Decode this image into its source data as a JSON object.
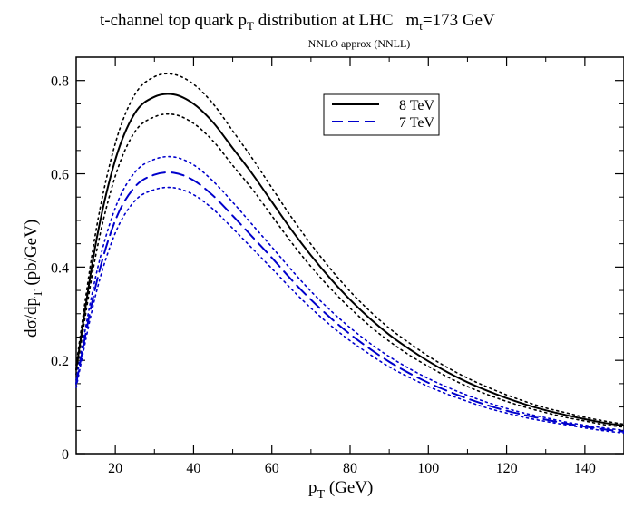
{
  "chart_data": {
    "type": "line",
    "title_main": "t-channel top quark p",
    "title_sub_T": "T",
    "title_rest": " distribution at LHC",
    "title_mass_prefix": "m",
    "title_mass_sub": "t",
    "title_mass_value": "=173 GeV",
    "subtitle": "NNLO approx (NNLL)",
    "xlabel_main": "p",
    "xlabel_sub": "T",
    "xlabel_unit": " (GeV)",
    "ylabel_main": "dσ/dp",
    "ylabel_sub": "T",
    "ylabel_unit": " (pb/GeV)",
    "xlim": [
      10,
      150
    ],
    "ylim": [
      0,
      0.85
    ],
    "xticks": [
      20,
      40,
      60,
      80,
      100,
      120,
      140
    ],
    "xtick_labels": [
      "20",
      "40",
      "60",
      "80",
      "100",
      "120",
      "140"
    ],
    "yticks": [
      0,
      0.2,
      0.4,
      0.6,
      0.8
    ],
    "ytick_labels": [
      "0",
      "0.2",
      "0.4",
      "0.6",
      "0.8"
    ],
    "grid": false,
    "legend_position": "top-center",
    "x": [
      10,
      15,
      20,
      25,
      30,
      35,
      40,
      45,
      50,
      55,
      60,
      65,
      70,
      75,
      80,
      85,
      90,
      95,
      100,
      105,
      110,
      115,
      120,
      125,
      130,
      135,
      140,
      145,
      150
    ],
    "series": [
      {
        "name": "8 TeV",
        "color": "#000000",
        "style": "solid",
        "values": [
          0.18,
          0.45,
          0.63,
          0.73,
          0.765,
          0.77,
          0.75,
          0.71,
          0.655,
          0.6,
          0.54,
          0.48,
          0.425,
          0.375,
          0.33,
          0.29,
          0.255,
          0.225,
          0.198,
          0.174,
          0.153,
          0.135,
          0.119,
          0.105,
          0.093,
          0.083,
          0.074,
          0.066,
          0.06
        ]
      },
      {
        "color": "#000000",
        "style": "dotted",
        "values": [
          0.19,
          0.475,
          0.665,
          0.77,
          0.808,
          0.813,
          0.792,
          0.75,
          0.692,
          0.633,
          0.57,
          0.507,
          0.449,
          0.396,
          0.348,
          0.306,
          0.269,
          0.238,
          0.209,
          0.184,
          0.162,
          0.143,
          0.126,
          0.111,
          0.098,
          0.088,
          0.078,
          0.07,
          0.063
        ]
      },
      {
        "color": "#000000",
        "style": "dotted",
        "values": [
          0.17,
          0.425,
          0.595,
          0.69,
          0.722,
          0.727,
          0.708,
          0.67,
          0.618,
          0.567,
          0.51,
          0.453,
          0.401,
          0.354,
          0.312,
          0.274,
          0.241,
          0.212,
          0.187,
          0.164,
          0.144,
          0.127,
          0.112,
          0.099,
          0.088,
          0.078,
          0.07,
          0.062,
          0.057
        ]
      },
      {
        "name": "7 TeV",
        "color": "#0000cc",
        "style": "dashed",
        "values": [
          0.15,
          0.36,
          0.5,
          0.572,
          0.598,
          0.602,
          0.586,
          0.553,
          0.51,
          0.465,
          0.42,
          0.373,
          0.33,
          0.291,
          0.256,
          0.225,
          0.197,
          0.173,
          0.152,
          0.134,
          0.118,
          0.104,
          0.092,
          0.082,
          0.073,
          0.065,
          0.058,
          0.052,
          0.047
        ]
      },
      {
        "color": "#0000cc",
        "style": "dotted",
        "values": [
          0.158,
          0.38,
          0.527,
          0.603,
          0.631,
          0.636,
          0.619,
          0.584,
          0.539,
          0.491,
          0.443,
          0.394,
          0.348,
          0.307,
          0.27,
          0.237,
          0.208,
          0.183,
          0.161,
          0.142,
          0.125,
          0.11,
          0.097,
          0.086,
          0.077,
          0.068,
          0.061,
          0.055,
          0.05
        ]
      },
      {
        "color": "#0000cc",
        "style": "dotted",
        "values": [
          0.142,
          0.341,
          0.473,
          0.542,
          0.566,
          0.57,
          0.555,
          0.524,
          0.483,
          0.44,
          0.397,
          0.353,
          0.312,
          0.275,
          0.242,
          0.213,
          0.186,
          0.164,
          0.144,
          0.127,
          0.112,
          0.098,
          0.087,
          0.077,
          0.069,
          0.062,
          0.055,
          0.049,
          0.044
        ]
      }
    ]
  }
}
